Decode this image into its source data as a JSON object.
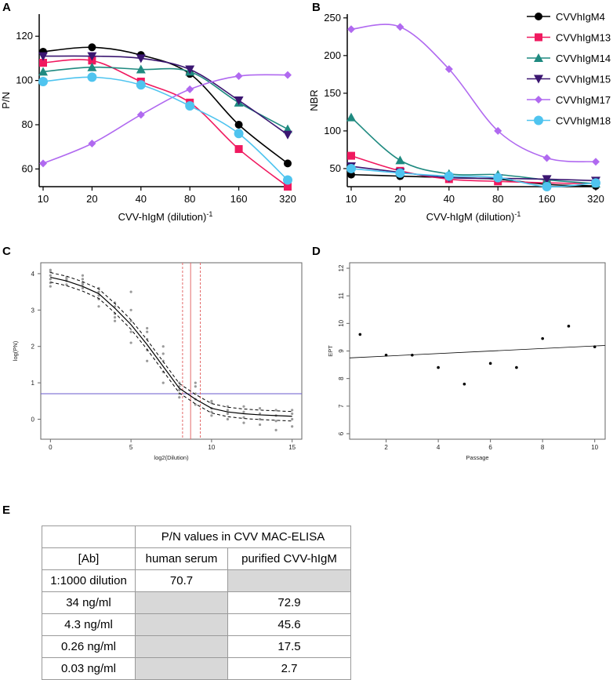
{
  "panel_labels": {
    "A": "A",
    "B": "B",
    "C": "C",
    "D": "D",
    "E": "E"
  },
  "colors": {
    "CVVhIgM4": "#000000",
    "CVVhIgM13": "#f0195f",
    "CVVhIgM14": "#1f8a80",
    "CVVhIgM15": "#3b1671",
    "CVVhIgM17": "#b069f0",
    "CVVhIgM18": "#4fc4ef"
  },
  "legend": [
    {
      "name": "CVVhIgM4",
      "marker": "circle"
    },
    {
      "name": "CVVhIgM13",
      "marker": "square"
    },
    {
      "name": "CVVhIgM14",
      "marker": "triangle-up"
    },
    {
      "name": "CVVhIgM15",
      "marker": "triangle-down"
    },
    {
      "name": "CVVhIgM17",
      "marker": "diamond"
    },
    {
      "name": "CVVhIgM18",
      "marker": "circle-large"
    }
  ],
  "chart_data": [
    {
      "panel": "A",
      "type": "line",
      "ylabel": "P/N",
      "xlabel_main": "CVV-hIgM (dilution)",
      "xlabel_sup": "-1",
      "categories": [
        "10",
        "20",
        "40",
        "80",
        "160",
        "320"
      ],
      "yticks": [
        "60",
        "80",
        "100",
        "120"
      ],
      "ylim": [
        52,
        130
      ],
      "series": [
        {
          "name": "CVVhIgM4",
          "values": [
            113,
            115,
            111.5,
            103,
            80,
            62.5
          ]
        },
        {
          "name": "CVVhIgM13",
          "values": [
            108,
            109,
            99.5,
            90,
            69,
            52
          ]
        },
        {
          "name": "CVVhIgM14",
          "values": [
            104,
            106,
            105,
            104,
            90,
            78
          ]
        },
        {
          "name": "CVVhIgM15",
          "values": [
            111,
            111,
            110,
            105,
            91,
            75.5
          ]
        },
        {
          "name": "CVVhIgM17",
          "values": [
            62.5,
            71.5,
            84.5,
            96,
            102,
            102.5
          ]
        },
        {
          "name": "CVVhIgM18",
          "values": [
            99.5,
            101.5,
            98,
            88.5,
            76,
            55
          ]
        }
      ]
    },
    {
      "panel": "B",
      "type": "line",
      "ylabel": "NBR",
      "xlabel_main": "CVV-hIgM (dilution)",
      "xlabel_sup": "-1",
      "categories": [
        "10",
        "20",
        "40",
        "80",
        "160",
        "320"
      ],
      "yticks": [
        "50",
        "100",
        "150",
        "200",
        "250"
      ],
      "ylim": [
        26,
        255
      ],
      "series": [
        {
          "name": "CVVhIgM4",
          "values": [
            42,
            40,
            38,
            36,
            29,
            27
          ]
        },
        {
          "name": "CVVhIgM13",
          "values": [
            67,
            47,
            36,
            33,
            31,
            30
          ]
        },
        {
          "name": "CVVhIgM14",
          "values": [
            118,
            61,
            43,
            42,
            35,
            30
          ]
        },
        {
          "name": "CVVhIgM15",
          "values": [
            53,
            45,
            38,
            37,
            36,
            34
          ]
        },
        {
          "name": "CVVhIgM17",
          "values": [
            235,
            238,
            182,
            100,
            64,
            59
          ]
        },
        {
          "name": "CVVhIgM18",
          "values": [
            50,
            44,
            40,
            38,
            26,
            31
          ]
        }
      ]
    },
    {
      "panel": "C",
      "type": "line",
      "xlabel": "log2(Dilution)",
      "ylabel": "log(PN)",
      "xticks": [
        "0",
        "5",
        "10",
        "15"
      ],
      "yticks": [
        "0",
        "1",
        "2",
        "3",
        "4"
      ],
      "xlim": [
        -0.6,
        15.6
      ],
      "ylim": [
        -0.55,
        4.3
      ],
      "fit_x": [
        0,
        1,
        2,
        3,
        4,
        5,
        6,
        7,
        8,
        9,
        10,
        11,
        12,
        13,
        14,
        15
      ],
      "fit_y": [
        3.9,
        3.8,
        3.65,
        3.45,
        3.05,
        2.6,
        2.05,
        1.45,
        0.85,
        0.55,
        0.3,
        0.2,
        0.15,
        0.12,
        0.1,
        0.08
      ],
      "band_offset": 0.13,
      "threshold_y": 0.7,
      "vline_x": 8.7,
      "vline_ci": [
        8.2,
        9.3
      ],
      "scatter": [
        [
          0,
          3.65
        ],
        [
          0,
          3.75
        ],
        [
          0,
          3.85
        ],
        [
          0,
          3.95
        ],
        [
          0,
          4.05
        ],
        [
          0,
          4.1
        ],
        [
          1,
          3.7
        ],
        [
          1,
          3.8
        ],
        [
          1,
          3.9
        ],
        [
          1,
          3.85
        ],
        [
          2,
          3.6
        ],
        [
          2,
          3.7
        ],
        [
          2,
          3.75
        ],
        [
          2,
          3.85
        ],
        [
          2,
          3.95
        ],
        [
          3,
          3.1
        ],
        [
          3,
          3.3
        ],
        [
          3,
          3.5
        ],
        [
          3,
          3.6
        ],
        [
          3,
          3.4
        ],
        [
          4,
          2.7
        ],
        [
          4,
          2.9
        ],
        [
          4,
          3.1
        ],
        [
          4,
          3.2
        ],
        [
          4,
          2.8
        ],
        [
          5,
          2.1
        ],
        [
          5,
          2.4
        ],
        [
          5,
          2.7
        ],
        [
          5,
          3.0
        ],
        [
          5,
          3.5
        ],
        [
          6,
          1.6
        ],
        [
          6,
          1.9
        ],
        [
          6,
          2.2
        ],
        [
          6,
          2.4
        ],
        [
          6,
          2.5
        ],
        [
          7,
          1.0
        ],
        [
          7,
          1.3
        ],
        [
          7,
          1.6
        ],
        [
          7,
          1.8
        ],
        [
          7,
          2.0
        ],
        [
          8,
          0.7
        ],
        [
          8,
          0.8
        ],
        [
          8,
          0.9
        ],
        [
          8,
          1.0
        ],
        [
          8,
          0.6
        ],
        [
          9,
          0.4
        ],
        [
          9,
          0.55
        ],
        [
          9,
          0.7
        ],
        [
          9,
          0.9
        ],
        [
          9,
          1.0
        ],
        [
          10,
          0.1
        ],
        [
          10,
          0.2
        ],
        [
          10,
          0.3
        ],
        [
          10,
          0.45
        ],
        [
          10,
          0.5
        ],
        [
          11,
          0.0
        ],
        [
          11,
          0.15
        ],
        [
          11,
          0.25
        ],
        [
          11,
          0.35
        ],
        [
          12,
          -0.1
        ],
        [
          12,
          0.05
        ],
        [
          12,
          0.2
        ],
        [
          12,
          0.35
        ],
        [
          13,
          -0.15
        ],
        [
          13,
          0.0
        ],
        [
          13,
          0.15
        ],
        [
          13,
          0.3
        ],
        [
          14,
          -0.3
        ],
        [
          14,
          -0.05
        ],
        [
          14,
          0.1
        ],
        [
          14,
          0.25
        ],
        [
          15,
          -0.2
        ],
        [
          15,
          0.0
        ],
        [
          15,
          0.15
        ],
        [
          15,
          0.25
        ]
      ]
    },
    {
      "panel": "D",
      "type": "scatter",
      "xlabel": "Passage",
      "ylabel": "EPT",
      "xticks": [
        "2",
        "4",
        "6",
        "8",
        "10"
      ],
      "yticks": [
        "6",
        "7",
        "8",
        "9",
        "10",
        "11",
        "12"
      ],
      "xlim": [
        0.6,
        10.4
      ],
      "ylim": [
        5.8,
        12.2
      ],
      "x": [
        1,
        2,
        3,
        4,
        5,
        6,
        7,
        8,
        9,
        10
      ],
      "y": [
        9.6,
        8.85,
        8.85,
        8.4,
        7.8,
        8.55,
        8.4,
        9.45,
        9.9,
        9.15
      ],
      "trend": [
        8.75,
        9.2
      ]
    }
  ],
  "table": {
    "header_top": "P/N values in CVV MAC-ELISA",
    "col_ab": "[Ab]",
    "col_serum": "human serum",
    "col_purified": "purified CVV-hIgM",
    "rows": [
      {
        "ab": "1:1000 dilution",
        "serum": "70.7",
        "purified": ""
      },
      {
        "ab": "34 ng/ml",
        "serum": "",
        "purified": "72.9"
      },
      {
        "ab": "4.3 ng/ml",
        "serum": "",
        "purified": "45.6"
      },
      {
        "ab": "0.26 ng/ml",
        "serum": "",
        "purified": "17.5"
      },
      {
        "ab": "0.03 ng/ml",
        "serum": "",
        "purified": "2.7"
      }
    ]
  }
}
